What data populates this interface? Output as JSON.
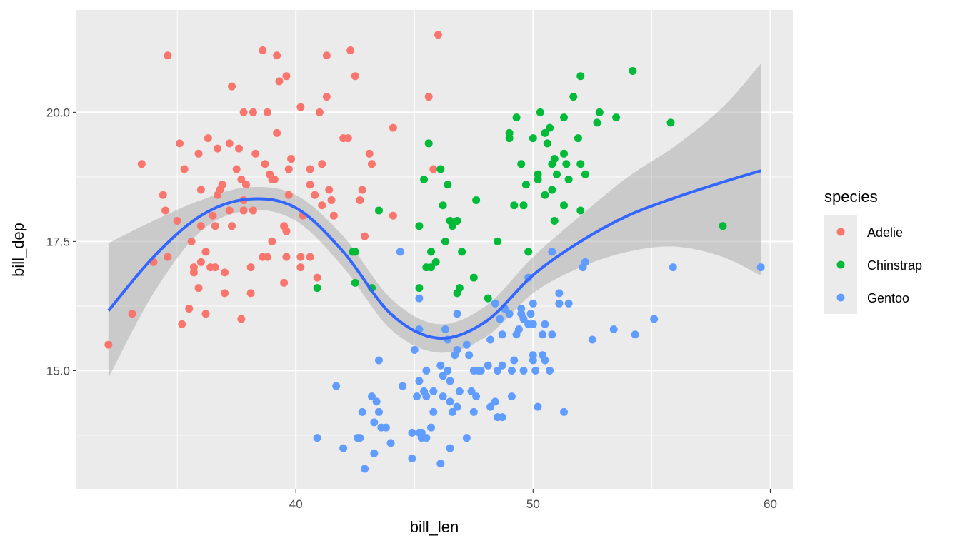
{
  "chart_data": {
    "type": "scatter",
    "title": "",
    "xlabel": "bill_len",
    "ylabel": "bill_dep",
    "xlim": [
      30.75,
      60.95
    ],
    "ylim": [
      12.7,
      21.98
    ],
    "x_ticks": [
      40,
      50,
      60
    ],
    "x_tick_labels": [
      "40",
      "50",
      "60"
    ],
    "x_minor": [
      35,
      45,
      55
    ],
    "y_ticks": [
      15.0,
      17.5,
      20.0
    ],
    "y_tick_labels": [
      "15.0",
      "17.5",
      "20.0"
    ],
    "y_minor": [
      13.75,
      16.25,
      18.75
    ],
    "grid": true,
    "colors": {
      "panel": "#EBEBEB",
      "grid": "#FFFFFF",
      "smooth": "#3366FF",
      "band": "#999999"
    },
    "legend": {
      "title": "species",
      "placement": "right",
      "entries": [
        {
          "label": "Adelie",
          "color": "#F8766D"
        },
        {
          "label": "Chinstrap",
          "color": "#00BA38"
        },
        {
          "label": "Gentoo",
          "color": "#619CFF"
        }
      ]
    },
    "series": [
      {
        "name": "Adelie",
        "color": "#F8766D",
        "points": [
          [
            32.1,
            15.5
          ],
          [
            33.1,
            16.1
          ],
          [
            33.5,
            19.0
          ],
          [
            34.0,
            17.1
          ],
          [
            34.4,
            18.4
          ],
          [
            34.5,
            18.1
          ],
          [
            34.6,
            17.2
          ],
          [
            34.6,
            21.1
          ],
          [
            35.1,
            19.4
          ],
          [
            35.0,
            17.9
          ],
          [
            35.3,
            18.9
          ],
          [
            35.2,
            15.9
          ],
          [
            35.5,
            16.2
          ],
          [
            35.6,
            17.5
          ],
          [
            35.7,
            17.0
          ],
          [
            35.7,
            16.9
          ],
          [
            35.9,
            16.6
          ],
          [
            36.0,
            17.1
          ],
          [
            36.0,
            17.8
          ],
          [
            35.9,
            19.2
          ],
          [
            36.0,
            18.5
          ],
          [
            36.2,
            17.3
          ],
          [
            36.2,
            16.1
          ],
          [
            36.3,
            19.5
          ],
          [
            36.4,
            17.0
          ],
          [
            36.5,
            18.0
          ],
          [
            36.6,
            17.8
          ],
          [
            36.7,
            18.4
          ],
          [
            36.7,
            19.3
          ],
          [
            36.8,
            18.5
          ],
          [
            36.9,
            18.6
          ],
          [
            37.0,
            16.9
          ],
          [
            37.0,
            16.5
          ],
          [
            37.2,
            18.1
          ],
          [
            37.2,
            19.4
          ],
          [
            37.3,
            20.5
          ],
          [
            37.3,
            17.8
          ],
          [
            37.6,
            19.3
          ],
          [
            37.7,
            16.0
          ],
          [
            37.7,
            18.7
          ],
          [
            37.8,
            18.3
          ],
          [
            37.8,
            18.1
          ],
          [
            37.8,
            20.0
          ],
          [
            37.9,
            18.6
          ],
          [
            38.1,
            17.0
          ],
          [
            38.1,
            16.5
          ],
          [
            38.2,
            20.0
          ],
          [
            38.2,
            18.1
          ],
          [
            38.3,
            19.2
          ],
          [
            38.6,
            21.2
          ],
          [
            38.6,
            17.2
          ],
          [
            38.7,
            19.0
          ],
          [
            38.8,
            20.0
          ],
          [
            38.8,
            17.2
          ],
          [
            38.9,
            18.8
          ],
          [
            39.0,
            17.5
          ],
          [
            39.0,
            18.7
          ],
          [
            39.1,
            18.7
          ],
          [
            39.2,
            21.1
          ],
          [
            39.2,
            19.6
          ],
          [
            39.3,
            20.6
          ],
          [
            39.5,
            17.8
          ],
          [
            39.5,
            16.7
          ],
          [
            39.6,
            17.7
          ],
          [
            39.6,
            20.7
          ],
          [
            39.7,
            18.9
          ],
          [
            39.7,
            18.4
          ],
          [
            39.8,
            19.1
          ],
          [
            40.2,
            20.1
          ],
          [
            40.2,
            17.0
          ],
          [
            40.3,
            18.0
          ],
          [
            40.6,
            18.9
          ],
          [
            40.6,
            17.2
          ],
          [
            40.6,
            18.6
          ],
          [
            40.8,
            18.4
          ],
          [
            40.9,
            16.8
          ],
          [
            41.0,
            20.0
          ],
          [
            41.1,
            19.0
          ],
          [
            41.1,
            18.2
          ],
          [
            41.3,
            21.1
          ],
          [
            41.3,
            20.3
          ],
          [
            41.4,
            18.5
          ],
          [
            41.5,
            18.3
          ],
          [
            41.6,
            18.0
          ],
          [
            42.0,
            19.5
          ],
          [
            42.2,
            19.5
          ],
          [
            42.3,
            21.2
          ],
          [
            42.5,
            20.7
          ],
          [
            42.7,
            18.3
          ],
          [
            42.8,
            18.5
          ],
          [
            43.1,
            19.2
          ],
          [
            43.2,
            19.0
          ],
          [
            44.1,
            18.0
          ],
          [
            44.1,
            19.7
          ],
          [
            45.6,
            20.3
          ],
          [
            45.8,
            18.9
          ],
          [
            46.0,
            21.5
          ],
          [
            42.9,
            17.6
          ],
          [
            40.2,
            17.2
          ],
          [
            39.6,
            17.2
          ],
          [
            37.5,
            18.9
          ],
          [
            36.6,
            17.0
          ]
        ]
      },
      {
        "name": "Chinstrap",
        "color": "#00BA38",
        "points": [
          [
            40.9,
            16.6
          ],
          [
            42.4,
            17.3
          ],
          [
            42.5,
            16.7
          ],
          [
            42.5,
            17.3
          ],
          [
            43.2,
            16.6
          ],
          [
            43.5,
            18.1
          ],
          [
            45.2,
            17.8
          ],
          [
            45.2,
            16.6
          ],
          [
            45.4,
            18.7
          ],
          [
            45.5,
            17.0
          ],
          [
            45.6,
            19.4
          ],
          [
            45.7,
            17.3
          ],
          [
            45.7,
            17.0
          ],
          [
            45.9,
            17.1
          ],
          [
            46.1,
            18.9
          ],
          [
            46.2,
            18.2
          ],
          [
            46.3,
            17.5
          ],
          [
            46.4,
            18.6
          ],
          [
            46.5,
            17.9
          ],
          [
            46.6,
            17.8
          ],
          [
            46.8,
            17.9
          ],
          [
            46.8,
            16.5
          ],
          [
            46.9,
            16.6
          ],
          [
            47.0,
            17.3
          ],
          [
            47.5,
            16.8
          ],
          [
            47.6,
            18.3
          ],
          [
            48.1,
            16.4
          ],
          [
            48.5,
            17.5
          ],
          [
            49.0,
            19.5
          ],
          [
            49.0,
            19.6
          ],
          [
            49.2,
            18.2
          ],
          [
            49.3,
            19.9
          ],
          [
            49.5,
            19.0
          ],
          [
            49.6,
            18.2
          ],
          [
            49.7,
            18.6
          ],
          [
            49.8,
            17.3
          ],
          [
            50.0,
            19.5
          ],
          [
            50.2,
            18.8
          ],
          [
            50.2,
            18.7
          ],
          [
            50.3,
            20.0
          ],
          [
            50.5,
            18.4
          ],
          [
            50.5,
            19.6
          ],
          [
            50.6,
            19.4
          ],
          [
            50.7,
            19.7
          ],
          [
            50.8,
            18.5
          ],
          [
            50.8,
            19.0
          ],
          [
            50.9,
            17.9
          ],
          [
            50.9,
            19.1
          ],
          [
            51.0,
            18.8
          ],
          [
            51.3,
            19.2
          ],
          [
            51.3,
            18.2
          ],
          [
            51.3,
            19.9
          ],
          [
            51.4,
            19.0
          ],
          [
            51.5,
            18.7
          ],
          [
            51.7,
            20.3
          ],
          [
            51.9,
            19.5
          ],
          [
            52.0,
            18.1
          ],
          [
            52.0,
            19.0
          ],
          [
            52.0,
            20.7
          ],
          [
            52.2,
            18.8
          ],
          [
            52.7,
            19.8
          ],
          [
            52.8,
            20.0
          ],
          [
            53.5,
            19.9
          ],
          [
            54.2,
            20.8
          ],
          [
            55.8,
            19.8
          ],
          [
            58.0,
            17.8
          ]
        ]
      },
      {
        "name": "Gentoo",
        "color": "#619CFF",
        "points": [
          [
            40.9,
            13.7
          ],
          [
            41.7,
            14.7
          ],
          [
            42.0,
            13.5
          ],
          [
            42.6,
            13.7
          ],
          [
            42.7,
            13.7
          ],
          [
            42.8,
            14.2
          ],
          [
            42.9,
            13.1
          ],
          [
            43.2,
            14.5
          ],
          [
            43.3,
            13.4
          ],
          [
            43.3,
            14.0
          ],
          [
            43.4,
            14.4
          ],
          [
            43.5,
            14.2
          ],
          [
            43.5,
            15.2
          ],
          [
            43.6,
            13.9
          ],
          [
            43.8,
            13.9
          ],
          [
            44.0,
            13.6
          ],
          [
            44.4,
            17.3
          ],
          [
            44.5,
            14.7
          ],
          [
            44.9,
            13.3
          ],
          [
            44.9,
            13.8
          ],
          [
            45.0,
            15.4
          ],
          [
            45.1,
            14.5
          ],
          [
            45.2,
            13.8
          ],
          [
            45.2,
            14.8
          ],
          [
            45.2,
            15.8
          ],
          [
            45.2,
            16.4
          ],
          [
            45.3,
            13.7
          ],
          [
            45.3,
            13.8
          ],
          [
            45.4,
            14.6
          ],
          [
            45.5,
            13.7
          ],
          [
            45.5,
            14.5
          ],
          [
            45.5,
            15.0
          ],
          [
            45.7,
            13.9
          ],
          [
            45.8,
            14.2
          ],
          [
            45.8,
            14.6
          ],
          [
            46.1,
            13.2
          ],
          [
            46.1,
            15.1
          ],
          [
            46.2,
            14.5
          ],
          [
            46.2,
            14.9
          ],
          [
            46.3,
            15.8
          ],
          [
            46.4,
            15.0
          ],
          [
            46.4,
            15.6
          ],
          [
            46.5,
            13.5
          ],
          [
            46.5,
            14.4
          ],
          [
            46.5,
            14.8
          ],
          [
            46.6,
            14.2
          ],
          [
            46.7,
            15.3
          ],
          [
            46.8,
            14.3
          ],
          [
            46.8,
            15.4
          ],
          [
            46.8,
            16.1
          ],
          [
            46.9,
            14.6
          ],
          [
            47.2,
            13.7
          ],
          [
            47.2,
            15.5
          ],
          [
            47.3,
            15.3
          ],
          [
            47.4,
            14.6
          ],
          [
            47.5,
            14.2
          ],
          [
            47.5,
            15.0
          ],
          [
            47.6,
            14.5
          ],
          [
            47.7,
            15.0
          ],
          [
            47.8,
            15.0
          ],
          [
            48.1,
            15.1
          ],
          [
            48.2,
            14.3
          ],
          [
            48.2,
            15.6
          ],
          [
            48.4,
            14.4
          ],
          [
            48.4,
            16.3
          ],
          [
            48.5,
            14.1
          ],
          [
            48.5,
            15.0
          ],
          [
            48.6,
            16.0
          ],
          [
            48.7,
            14.1
          ],
          [
            48.7,
            15.1
          ],
          [
            48.7,
            15.7
          ],
          [
            48.8,
            16.2
          ],
          [
            49.0,
            16.1
          ],
          [
            49.1,
            14.5
          ],
          [
            49.1,
            15.0
          ],
          [
            49.2,
            15.2
          ],
          [
            49.3,
            15.7
          ],
          [
            49.4,
            15.8
          ],
          [
            49.5,
            16.1
          ],
          [
            49.5,
            16.2
          ],
          [
            49.6,
            15.0
          ],
          [
            49.6,
            16.0
          ],
          [
            49.8,
            15.9
          ],
          [
            49.8,
            16.8
          ],
          [
            49.9,
            16.1
          ],
          [
            50.0,
            15.2
          ],
          [
            50.0,
            15.3
          ],
          [
            50.0,
            15.9
          ],
          [
            50.0,
            16.3
          ],
          [
            50.1,
            15.0
          ],
          [
            50.2,
            14.3
          ],
          [
            50.4,
            15.3
          ],
          [
            50.4,
            15.7
          ],
          [
            50.5,
            15.2
          ],
          [
            50.5,
            15.9
          ],
          [
            50.7,
            15.0
          ],
          [
            50.8,
            15.7
          ],
          [
            50.8,
            17.3
          ],
          [
            51.1,
            16.3
          ],
          [
            51.1,
            16.5
          ],
          [
            51.3,
            14.2
          ],
          [
            51.5,
            16.3
          ],
          [
            52.1,
            17.0
          ],
          [
            52.2,
            17.1
          ],
          [
            52.5,
            15.6
          ],
          [
            53.4,
            15.8
          ],
          [
            54.3,
            15.7
          ],
          [
            55.1,
            16.0
          ],
          [
            55.9,
            17.0
          ],
          [
            59.6,
            17.0
          ]
        ]
      }
    ],
    "smooth": {
      "method": "loess",
      "x": [
        32.1,
        34,
        36,
        38,
        40,
        42,
        44,
        46,
        48,
        50,
        52,
        54,
        56,
        58,
        59.6
      ],
      "fit": [
        16.16,
        17.2,
        18.0,
        18.32,
        18.15,
        17.3,
        16.1,
        15.63,
        15.95,
        16.85,
        17.5,
        18.0,
        18.35,
        18.65,
        18.87
      ],
      "lower": [
        14.86,
        16.5,
        17.7,
        18.1,
        17.9,
        17.0,
        15.8,
        15.35,
        15.65,
        16.5,
        17.0,
        17.3,
        17.4,
        17.2,
        16.84
      ],
      "upper": [
        17.47,
        17.9,
        18.3,
        18.55,
        18.4,
        17.6,
        16.4,
        15.9,
        16.25,
        17.2,
        18.0,
        18.75,
        19.35,
        20.1,
        20.94
      ]
    }
  }
}
